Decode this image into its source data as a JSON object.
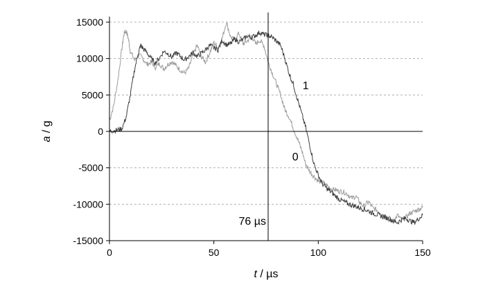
{
  "chart_data": {
    "type": "line",
    "title": "",
    "xlabel_var": "t",
    "xlabel_unit": " / µs",
    "ylabel_var": "a",
    "ylabel_unit": " / g",
    "xlim": [
      0,
      150
    ],
    "ylim": [
      -15000,
      15000
    ],
    "xticks": [
      "0",
      "50",
      "100",
      "150"
    ],
    "yticks": [
      "-15000",
      "-10000",
      "-5000",
      "0",
      "5000",
      "10000",
      "15000"
    ],
    "grid": "horizontal dashed",
    "vline": {
      "x": 76,
      "label": "76 µs"
    },
    "series": [
      {
        "name": "0",
        "color": "#9a9a9a",
        "points": [
          [
            0,
            1500
          ],
          [
            2,
            3500
          ],
          [
            4,
            7000
          ],
          [
            6,
            11500
          ],
          [
            7,
            13500
          ],
          [
            8,
            13800
          ],
          [
            9,
            12800
          ],
          [
            10,
            11000
          ],
          [
            12,
            9800
          ],
          [
            14,
            10500
          ],
          [
            16,
            10000
          ],
          [
            18,
            9200
          ],
          [
            20,
            9500
          ],
          [
            22,
            8800
          ],
          [
            24,
            9300
          ],
          [
            26,
            8600
          ],
          [
            28,
            9200
          ],
          [
            30,
            9600
          ],
          [
            32,
            9000
          ],
          [
            34,
            8400
          ],
          [
            36,
            8000
          ],
          [
            38,
            8700
          ],
          [
            40,
            10500
          ],
          [
            42,
            11800
          ],
          [
            44,
            10300
          ],
          [
            46,
            9500
          ],
          [
            48,
            10800
          ],
          [
            50,
            12200
          ],
          [
            52,
            11500
          ],
          [
            54,
            12800
          ],
          [
            56,
            15000
          ],
          [
            58,
            13000
          ],
          [
            60,
            12500
          ],
          [
            62,
            13500
          ],
          [
            64,
            12000
          ],
          [
            66,
            12400
          ],
          [
            68,
            13100
          ],
          [
            70,
            12000
          ],
          [
            72,
            12500
          ],
          [
            74,
            11800
          ],
          [
            76,
            9500
          ],
          [
            78,
            8000
          ],
          [
            80,
            6500
          ],
          [
            82,
            5000
          ],
          [
            84,
            3000
          ],
          [
            86,
            2000
          ],
          [
            88,
            500
          ],
          [
            90,
            -1000
          ],
          [
            92,
            -2500
          ],
          [
            94,
            -4500
          ],
          [
            96,
            -5500
          ],
          [
            98,
            -6200
          ],
          [
            100,
            -6800
          ],
          [
            102,
            -7000
          ],
          [
            104,
            -7400
          ],
          [
            106,
            -7900
          ],
          [
            108,
            -8000
          ],
          [
            110,
            -8200
          ],
          [
            112,
            -8300
          ],
          [
            114,
            -8600
          ],
          [
            116,
            -9200
          ],
          [
            118,
            -8900
          ],
          [
            120,
            -9800
          ],
          [
            122,
            -10300
          ],
          [
            124,
            -9600
          ],
          [
            126,
            -10500
          ],
          [
            128,
            -10800
          ],
          [
            130,
            -11200
          ],
          [
            132,
            -11600
          ],
          [
            134,
            -11900
          ],
          [
            136,
            -12400
          ],
          [
            138,
            -11500
          ],
          [
            140,
            -12200
          ],
          [
            142,
            -11800
          ],
          [
            144,
            -11200
          ],
          [
            146,
            -11000
          ],
          [
            148,
            -10700
          ],
          [
            150,
            -10400
          ]
        ]
      },
      {
        "name": "1",
        "color": "#3c3c3c",
        "points": [
          [
            0,
            0
          ],
          [
            2,
            100
          ],
          [
            4,
            200
          ],
          [
            6,
            400
          ],
          [
            8,
            2000
          ],
          [
            10,
            5000
          ],
          [
            12,
            8500
          ],
          [
            14,
            11000
          ],
          [
            15,
            11800
          ],
          [
            16,
            11400
          ],
          [
            18,
            10800
          ],
          [
            20,
            10000
          ],
          [
            22,
            9400
          ],
          [
            24,
            10100
          ],
          [
            26,
            11000
          ],
          [
            28,
            10700
          ],
          [
            30,
            10200
          ],
          [
            32,
            10800
          ],
          [
            34,
            10300
          ],
          [
            36,
            9800
          ],
          [
            38,
            10300
          ],
          [
            40,
            10800
          ],
          [
            42,
            10300
          ],
          [
            44,
            10700
          ],
          [
            46,
            11200
          ],
          [
            48,
            11800
          ],
          [
            50,
            11500
          ],
          [
            52,
            11200
          ],
          [
            54,
            12500
          ],
          [
            56,
            11900
          ],
          [
            58,
            12000
          ],
          [
            60,
            12700
          ],
          [
            62,
            12300
          ],
          [
            64,
            12600
          ],
          [
            66,
            13100
          ],
          [
            68,
            12900
          ],
          [
            70,
            13200
          ],
          [
            72,
            13600
          ],
          [
            74,
            13300
          ],
          [
            76,
            13200
          ],
          [
            78,
            12900
          ],
          [
            80,
            12400
          ],
          [
            82,
            11800
          ],
          [
            84,
            10000
          ],
          [
            86,
            8000
          ],
          [
            88,
            6500
          ],
          [
            90,
            4500
          ],
          [
            92,
            2500
          ],
          [
            94,
            500
          ],
          [
            96,
            -2000
          ],
          [
            98,
            -4500
          ],
          [
            100,
            -6000
          ],
          [
            102,
            -7200
          ],
          [
            104,
            -7800
          ],
          [
            106,
            -8300
          ],
          [
            108,
            -8800
          ],
          [
            110,
            -9300
          ],
          [
            112,
            -9600
          ],
          [
            114,
            -9900
          ],
          [
            116,
            -10100
          ],
          [
            118,
            -10300
          ],
          [
            120,
            -10500
          ],
          [
            122,
            -10700
          ],
          [
            124,
            -10900
          ],
          [
            126,
            -11200
          ],
          [
            128,
            -11400
          ],
          [
            130,
            -11600
          ],
          [
            132,
            -11800
          ],
          [
            134,
            -12000
          ],
          [
            136,
            -12300
          ],
          [
            138,
            -12500
          ],
          [
            140,
            -12100
          ],
          [
            142,
            -11900
          ],
          [
            144,
            -12300
          ],
          [
            146,
            -12500
          ],
          [
            148,
            -12000
          ],
          [
            150,
            -11500
          ]
        ]
      }
    ],
    "series_labels": [
      {
        "series": "1",
        "text": "1",
        "x": 94,
        "y": 5800
      },
      {
        "series": "0",
        "text": "0",
        "x": 89,
        "y": -4000
      }
    ]
  }
}
